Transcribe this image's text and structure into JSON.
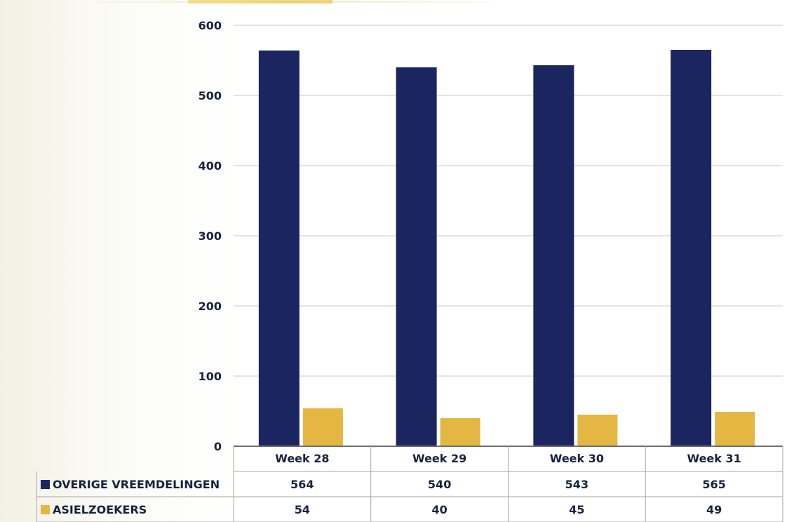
{
  "chart_data": {
    "type": "bar",
    "categories": [
      "Week 28",
      "Week 29",
      "Week 30",
      "Week 31"
    ],
    "series": [
      {
        "name": "OVERIGE VREEMDELINGEN",
        "values": [
          564,
          540,
          543,
          565
        ],
        "color": "#1b2660"
      },
      {
        "name": "ASIELZOEKERS",
        "values": [
          54,
          40,
          45,
          49
        ],
        "color": "#e3b742"
      }
    ],
    "yticks": [
      0,
      100,
      200,
      300,
      400,
      500,
      600
    ],
    "ylim": [
      0,
      600
    ],
    "grid": true,
    "legend": "data-table"
  }
}
